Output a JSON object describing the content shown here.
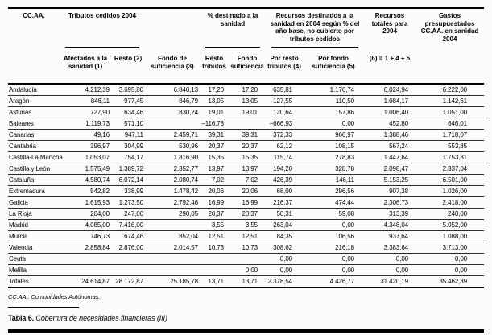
{
  "header": {
    "ccaa_label": "CC.AA.",
    "groups": {
      "tributos": "Tributos cedidos 2004",
      "pct_sanidad": "% destinado a la sanidad",
      "recursos_no_cubiertos": "Recursos destinados a la sanidad en 2004 según % del año base, no cubierto por tributos cedidos",
      "recursos_totales": "Recursos totales para 2004",
      "gastos": "Gastos presupuestados CC.AA. en sanidad 2004"
    },
    "subheaders": {
      "afectados": "Afectados a la sanidad (1)",
      "resto": "Resto (2)",
      "fondo_suficiencia": "Fondo de suficiencia (3)",
      "resto_tributos": "Resto tributos",
      "fondo_suf_pct": "Fondo suficiencia",
      "por_resto": "Por resto tributos (4)",
      "por_fondo": "Por fondo suficiencia (5)",
      "formula": "(6) = 1 + 4 + 5"
    }
  },
  "rows": [
    {
      "name": "Andalucía",
      "values": [
        "4.212,39",
        "3.695,80",
        "6.840,13",
        "17,20",
        "17,20",
        "635,81",
        "1.176,74",
        "6.024,94",
        "6.222,00"
      ]
    },
    {
      "name": "Aragón",
      "values": [
        "846,11",
        "977,45",
        "846,79",
        "13,05",
        "13,05",
        "127,55",
        "110,50",
        "1.084,17",
        "1.142,61"
      ]
    },
    {
      "name": "Asturias",
      "values": [
        "727,90",
        "634,46",
        "830,24",
        "19,01",
        "19,01",
        "120,64",
        "157,86",
        "1.006,40",
        "1.051,00"
      ]
    },
    {
      "name": "Baleares",
      "values": [
        "1.119,73",
        "571,10",
        "",
        "–116,78",
        "",
        "–666,93",
        "0,00",
        "452,80",
        "646,01"
      ]
    },
    {
      "name": "Canarias",
      "values": [
        "49,16",
        "947,11",
        "2.459,71",
        "39,31",
        "39,31",
        "372,33",
        "966,97",
        "1.388,46",
        "1.718,07"
      ]
    },
    {
      "name": "Cantabria",
      "values": [
        "396,97",
        "304,99",
        "530,96",
        "20,37",
        "20,37",
        "62,12",
        "108,15",
        "567,24",
        "553,85"
      ]
    },
    {
      "name": "Castilla-La Mancha",
      "values": [
        "1.053,07",
        "754,17",
        "1.816,90",
        "15,35",
        "15,35",
        "115,74",
        "278,83",
        "1.447,64",
        "1.753,81"
      ]
    },
    {
      "name": "Castilla y León",
      "values": [
        "1.575,49",
        "1.389,72",
        "2.352,77",
        "13,97",
        "13,97",
        "194,20",
        "328,78",
        "2.098,47",
        "2.337,04"
      ]
    },
    {
      "name": "Cataluña",
      "values": [
        "4.580,74",
        "6.072,14",
        "2.080,74",
        "7,02",
        "7,02",
        "426,39",
        "146,11",
        "5.153,25",
        "6.501,00"
      ]
    },
    {
      "name": "Extremadura",
      "values": [
        "542,82",
        "338,99",
        "1.478,42",
        "20,06",
        "20,06",
        "68,00",
        "296,56",
        "907,38",
        "1.026,00"
      ]
    },
    {
      "name": "Galicia",
      "values": [
        "1.615,93",
        "1.273,50",
        "2.792,46",
        "16,99",
        "16,99",
        "216,37",
        "474,44",
        "2.306,73",
        "2.418,00"
      ]
    },
    {
      "name": "La Rioja",
      "values": [
        "204,00",
        "247,00",
        "290,05",
        "20,37",
        "20,37",
        "50,31",
        "59,08",
        "313,39",
        "240,00"
      ]
    },
    {
      "name": "Madrid",
      "values": [
        "4.085,00",
        "7.416,00",
        "",
        "3,55",
        "3,55",
        "263,04",
        "0,00",
        "4.348,04",
        "5.052,00"
      ]
    },
    {
      "name": "Murcia",
      "values": [
        "746,73",
        "674,46",
        "852,04",
        "12,51",
        "12,51",
        "84,35",
        "106,56",
        "937,64",
        "1.088,00"
      ]
    },
    {
      "name": "Valencia",
      "values": [
        "2.858,84",
        "2.876,00",
        "2.014,57",
        "10,73",
        "10,73",
        "308,62",
        "216,18",
        "3.383,64",
        "3.713,00"
      ]
    },
    {
      "name": "Ceuta",
      "values": [
        "",
        "",
        "",
        "",
        "",
        "0,00",
        "0,00",
        "0,00",
        "0,00"
      ]
    },
    {
      "name": "Melilla",
      "values": [
        "",
        "",
        "",
        "",
        "0,00",
        "0,00",
        "0,00",
        "0,00",
        "0,00"
      ]
    }
  ],
  "totals": {
    "name": "Totales",
    "values": [
      "24.614,87",
      "28.172,87",
      "25.185,78",
      "13,71",
      "13,71",
      "2.378,54",
      "4.426,77",
      "31.420,19",
      "35.462,39"
    ]
  },
  "footnote": "CC.AA.: Comunidades Autónomas.",
  "caption": {
    "label": "Tabla 6.",
    "text": " Cobertura de necesidades financieras (III)"
  }
}
